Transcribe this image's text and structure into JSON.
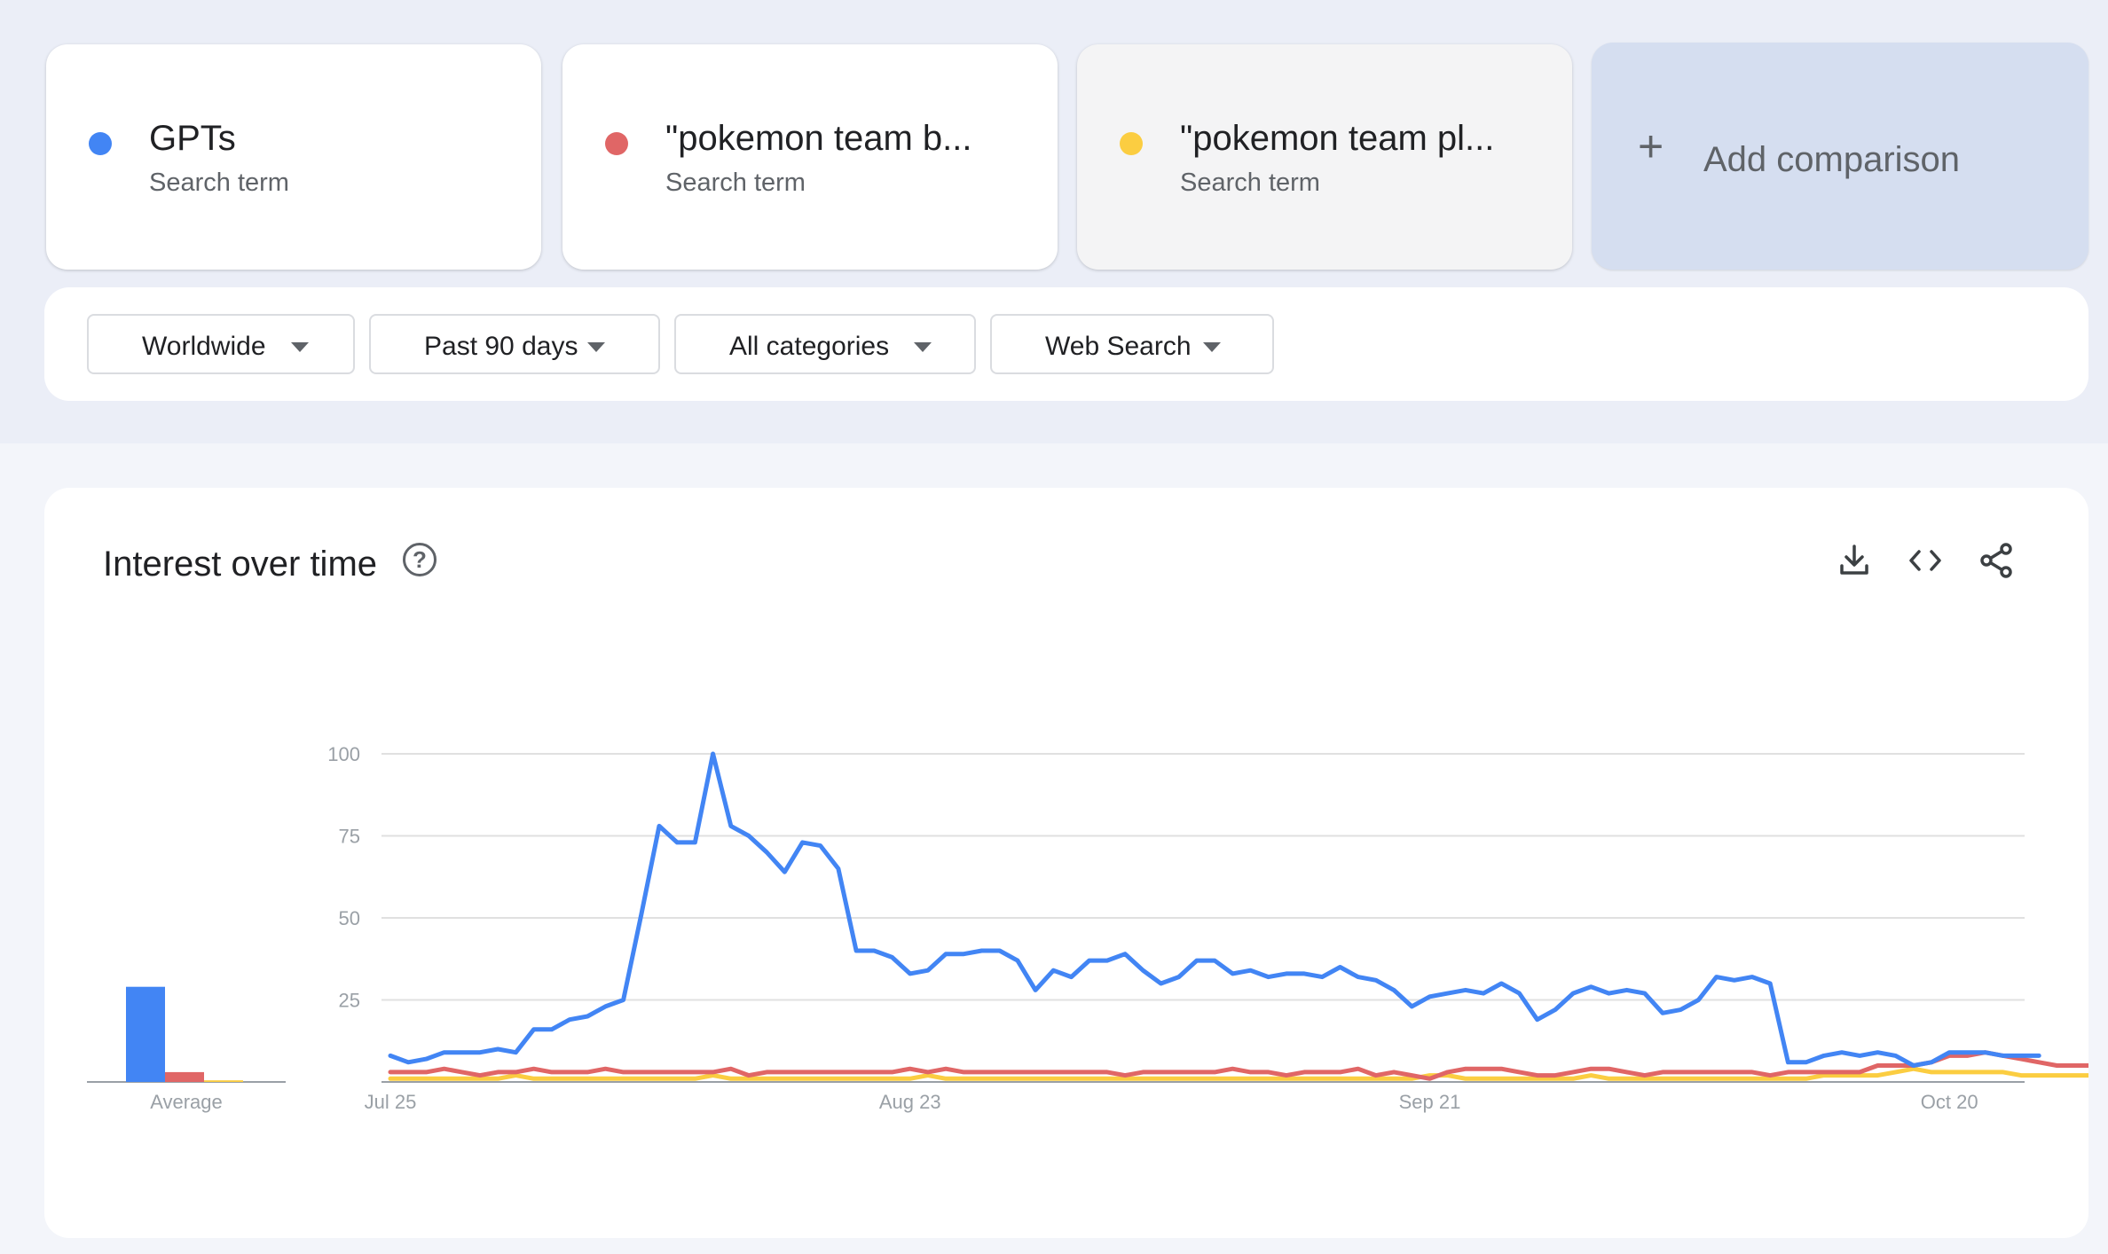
{
  "terms": [
    {
      "name": "GPTs",
      "type": "Search term",
      "color": "#4285f4"
    },
    {
      "name": "\"pokemon team b...",
      "type": "Search term",
      "color": "#e06666"
    },
    {
      "name": "\"pokemon team pl...",
      "type": "Search term",
      "color": "#fbcd41"
    }
  ],
  "add_comparison": {
    "label": "Add comparison",
    "icon": "plus-icon"
  },
  "filters": {
    "region": "Worldwide",
    "time": "Past 90 days",
    "category": "All categories",
    "search_type": "Web Search"
  },
  "interest": {
    "title": "Interest over time",
    "help_icon": "help-circle-icon",
    "tools": [
      "download-icon",
      "embed-code-icon",
      "share-icon"
    ]
  },
  "chart_data": {
    "type": "line",
    "yticks": [
      100,
      75,
      50,
      25
    ],
    "ylim": [
      0,
      100
    ],
    "x_ticks": [
      "Jul 25",
      "Aug 23",
      "Sep 21",
      "Oct 20"
    ],
    "x_tick_days": [
      0,
      29,
      58,
      87
    ],
    "days": 92,
    "grid": true,
    "average": {
      "label": "Average",
      "values": [
        29,
        3,
        0.5
      ]
    },
    "series": [
      {
        "name": "GPTs",
        "color": "#4285f4",
        "values": [
          8,
          6,
          7,
          9,
          9,
          9,
          10,
          9,
          16,
          16,
          19,
          20,
          23,
          25,
          51,
          78,
          73,
          73,
          100,
          78,
          75,
          70,
          64,
          73,
          72,
          65,
          40,
          40,
          38,
          33,
          34,
          39,
          39,
          40,
          40,
          37,
          28,
          34,
          32,
          37,
          37,
          39,
          34,
          30,
          32,
          37,
          37,
          33,
          34,
          32,
          33,
          33,
          32,
          35,
          32,
          31,
          28,
          23,
          26,
          27,
          28,
          27,
          30,
          27,
          19,
          22,
          27,
          29,
          27,
          28,
          27,
          21,
          22,
          25,
          32,
          31,
          32,
          30,
          6,
          6,
          8,
          9,
          8,
          9,
          8,
          5,
          6,
          9,
          9,
          9,
          8,
          8,
          8
        ]
      },
      {
        "name": "\"pokemon team b...",
        "color": "#e06666",
        "values": [
          3,
          3,
          3,
          4,
          3,
          2,
          3,
          3,
          4,
          3,
          3,
          3,
          4,
          3,
          3,
          3,
          3,
          3,
          3,
          4,
          2,
          3,
          3,
          3,
          3,
          3,
          3,
          3,
          3,
          4,
          3,
          4,
          3,
          3,
          3,
          3,
          3,
          3,
          3,
          3,
          3,
          2,
          3,
          3,
          3,
          3,
          3,
          4,
          3,
          3,
          2,
          3,
          3,
          3,
          4,
          2,
          3,
          2,
          1,
          3,
          4,
          4,
          4,
          3,
          2,
          2,
          3,
          4,
          4,
          3,
          2,
          3,
          3,
          3,
          3,
          3,
          3,
          2,
          3,
          3,
          3,
          3,
          3,
          5,
          5,
          5,
          6,
          8,
          8,
          9,
          8,
          7,
          6,
          5,
          5,
          5,
          6
        ]
      },
      {
        "name": "\"pokemon team pl...",
        "color": "#fbcd41",
        "values": [
          1,
          1,
          1,
          1,
          1,
          1,
          1,
          2,
          1,
          1,
          1,
          1,
          1,
          1,
          1,
          1,
          1,
          1,
          2,
          1,
          1,
          1,
          1,
          1,
          1,
          1,
          1,
          1,
          1,
          1,
          2,
          1,
          1,
          1,
          1,
          1,
          1,
          1,
          1,
          1,
          1,
          1,
          1,
          1,
          1,
          1,
          1,
          1,
          1,
          1,
          1,
          1,
          1,
          1,
          1,
          1,
          1,
          1,
          2,
          2,
          1,
          1,
          1,
          1,
          1,
          1,
          1,
          2,
          1,
          1,
          1,
          1,
          1,
          1,
          1,
          1,
          1,
          1,
          1,
          1,
          2,
          2,
          2,
          2,
          3,
          4,
          3,
          3,
          3,
          3,
          3,
          2,
          2,
          2,
          2,
          2,
          2
        ]
      }
    ]
  }
}
